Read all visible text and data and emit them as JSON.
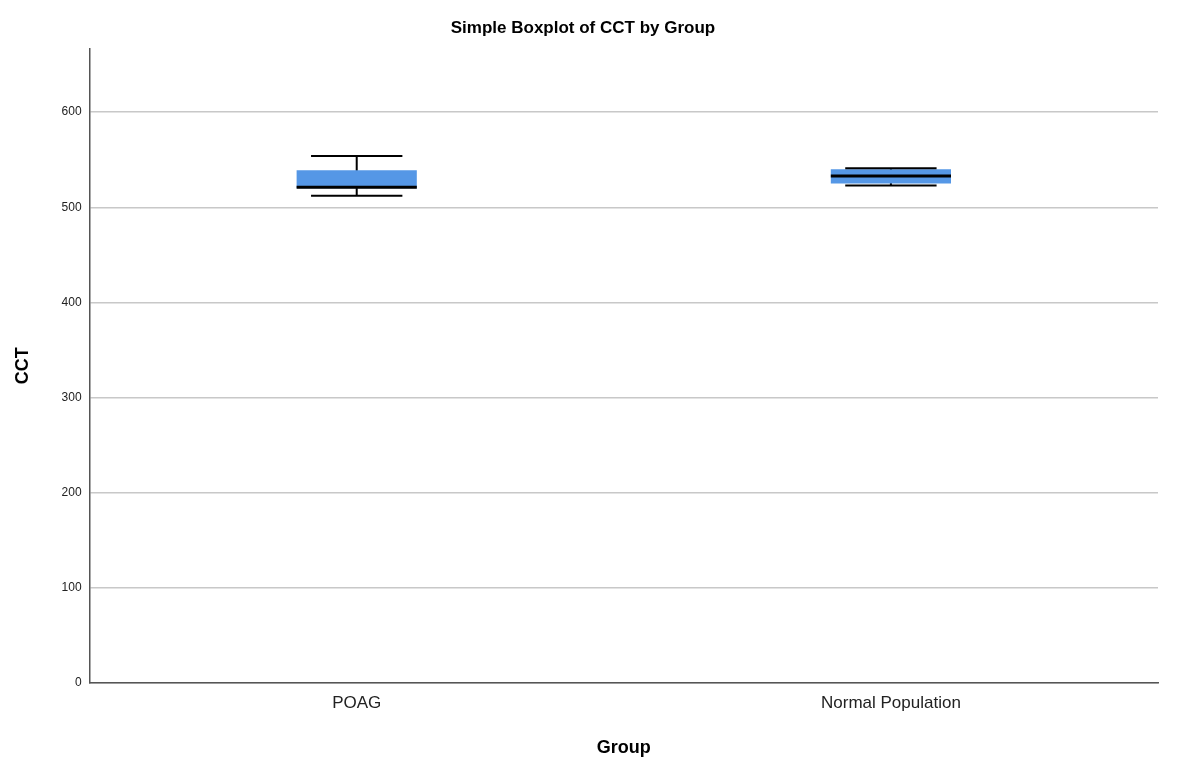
{
  "chart_data": {
    "type": "box",
    "title": "Simple Boxplot of CCT by Group",
    "xlabel": "Group",
    "ylabel": "CCT",
    "categories": [
      "POAG",
      "Normal Population"
    ],
    "boxes": [
      {
        "low": 512,
        "q1": 520,
        "median": 521,
        "q3": 539,
        "high": 554
      },
      {
        "low": 523,
        "q1": 525,
        "median": 533,
        "q3": 540,
        "high": 541
      }
    ],
    "color": "#5597e6",
    "ylim": [
      0,
      667
    ],
    "yticks": [
      0,
      100,
      200,
      300,
      400,
      500,
      600
    ],
    "grid": "y",
    "legend": false
  }
}
